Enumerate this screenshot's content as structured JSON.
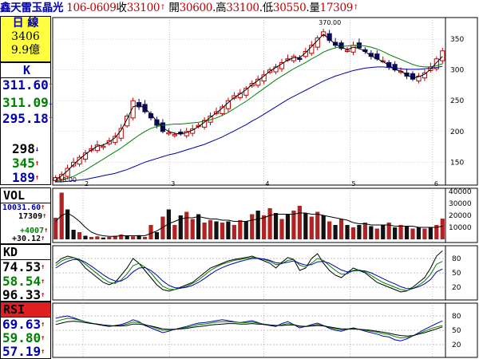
{
  "header": {
    "stock_name": "鑫天雷玉晶光",
    "code_date": "106-0609",
    "close_label": "收",
    "close": "33100",
    "open_label": "開",
    "open": "30600",
    "high_label": "高",
    "high": "33100",
    "low_label": "低",
    "low": "30550",
    "volume_label": "量",
    "volume": "17309"
  },
  "summary": {
    "period": "日 線",
    "count": "3406",
    "amount": "9.9億"
  },
  "panels": {
    "k": {
      "label": "K",
      "values": [
        "311.60",
        "311.09",
        "295.18",
        "298",
        "345",
        "189"
      ]
    },
    "vol": {
      "label": "VOL",
      "values": [
        "10031.60",
        "17309",
        "+4007",
        "+30.12"
      ]
    },
    "kd": {
      "label": "KD",
      "values": [
        "74.53",
        "58.54",
        "96.33"
      ]
    },
    "rsi": {
      "label": "RSI",
      "values": [
        "69.63",
        "59.80",
        "57.19"
      ]
    }
  },
  "colors": {
    "up": "#c00000",
    "down": "#0b0b5e",
    "ma_short": "#000000",
    "ma_mid": "#008000",
    "ma_long": "#0000aa",
    "bg": "#ffffff",
    "title_bg": "#ffff40"
  },
  "chart_data": [
    {
      "type": "candlestick",
      "ylim": [
        118,
        380
      ],
      "y_ticks": [
        150,
        200,
        250,
        300,
        350
      ],
      "month_labels": [
        "2",
        "3",
        "4",
        "5",
        "6"
      ],
      "month_label_positions": [
        0,
        0.22,
        0.46,
        0.68,
        0.89
      ],
      "annotations": [
        {
          "text": "370.00",
          "at": "high"
        },
        {
          "text": "118.00",
          "at": "low"
        }
      ],
      "close": [
        125,
        130,
        140,
        150,
        158,
        165,
        172,
        178,
        176,
        185,
        192,
        205,
        225,
        250,
        240,
        232,
        222,
        210,
        200,
        198,
        195,
        196,
        200,
        204,
        210,
        218,
        225,
        232,
        240,
        250,
        258,
        262,
        270,
        278,
        285,
        292,
        300,
        305,
        312,
        318,
        322,
        318,
        330,
        340,
        352,
        362,
        348,
        340,
        335,
        332,
        340,
        336,
        330,
        322,
        318,
        315,
        305,
        300,
        298,
        290,
        285,
        290,
        295,
        305,
        318,
        331
      ],
      "ma_short": [
        121,
        128,
        136,
        146,
        155,
        163,
        170,
        176,
        178,
        183,
        190,
        202,
        220,
        240,
        243,
        238,
        228,
        217,
        206,
        200,
        197,
        196,
        198,
        202,
        208,
        215,
        223,
        230,
        238,
        247,
        255,
        261,
        268,
        276,
        283,
        290,
        298,
        304,
        310,
        316,
        320,
        320,
        328,
        338,
        348,
        358,
        350,
        342,
        337,
        333,
        337,
        335,
        330,
        323,
        318,
        314,
        307,
        301,
        298,
        292,
        287,
        289,
        293,
        301,
        312,
        322
      ],
      "ma_mid": [
        119,
        121,
        124,
        127,
        132,
        137,
        143,
        149,
        155,
        161,
        167,
        173,
        180,
        187,
        194,
        200,
        205,
        208,
        210,
        211,
        212,
        212,
        213,
        214,
        215,
        217,
        219,
        222,
        226,
        231,
        237,
        243,
        249,
        256,
        263,
        270,
        277,
        284,
        290,
        296,
        302,
        307,
        312,
        318,
        323,
        329,
        333,
        336,
        338,
        339,
        340,
        340,
        339,
        337,
        334,
        330,
        325,
        321,
        317,
        313,
        309,
        306,
        305,
        305,
        307,
        310
      ],
      "ma_long": [
        118,
        118,
        119,
        120,
        121,
        122,
        124,
        126,
        128,
        130,
        132,
        135,
        138,
        142,
        146,
        150,
        153,
        156,
        159,
        162,
        164,
        167,
        170,
        173,
        176,
        179,
        183,
        187,
        191,
        196,
        201,
        206,
        211,
        217,
        222,
        228,
        234,
        240,
        246,
        252,
        257,
        262,
        267,
        272,
        277,
        282,
        286,
        290,
        293,
        296,
        299,
        301,
        303,
        304,
        305,
        305,
        304,
        303,
        302,
        301,
        301,
        301,
        302,
        303,
        304,
        306
      ]
    },
    {
      "type": "bar",
      "ylim": [
        0,
        40000
      ],
      "y_ticks": [
        10000,
        20000,
        30000,
        40000
      ],
      "values": [
        18000,
        39000,
        25000,
        8000,
        6000,
        3000,
        2000,
        2500,
        1500,
        2000,
        3000,
        4000,
        3000,
        2500,
        3500,
        2000,
        12000,
        6000,
        19000,
        25000,
        12000,
        20000,
        23000,
        17000,
        21000,
        14000,
        16000,
        15000,
        14000,
        15000,
        12000,
        16000,
        15000,
        21000,
        24000,
        20000,
        26000,
        22000,
        17000,
        21000,
        24000,
        28000,
        22000,
        19000,
        23000,
        20000,
        15000,
        12000,
        17000,
        12000,
        10000,
        12000,
        14000,
        11000,
        9000,
        12000,
        14000,
        10000,
        12000,
        11000,
        9000,
        10000,
        9000,
        10000,
        12000,
        17309
      ],
      "up_flags": [
        true,
        true,
        false,
        false,
        true,
        false,
        true,
        true,
        false,
        true,
        true,
        true,
        false,
        true,
        false,
        true,
        true,
        false,
        true,
        false,
        true,
        false,
        true,
        true,
        false,
        true,
        true,
        false,
        true,
        false,
        true,
        true,
        false,
        true,
        false,
        true,
        true,
        false,
        true,
        false,
        true,
        true,
        false,
        true,
        true,
        false,
        true,
        false,
        true,
        false,
        true,
        false,
        true,
        false,
        true,
        false,
        true,
        false,
        true,
        false,
        true,
        false,
        true,
        false,
        true,
        true
      ],
      "ma": [
        15000,
        20000,
        22000,
        19000,
        15000,
        10000,
        6000,
        4000,
        3000,
        2500,
        2500,
        3000,
        3000,
        3000,
        3000,
        3000,
        5000,
        7000,
        10000,
        13000,
        15000,
        17000,
        18000,
        18000,
        19000,
        18000,
        17000,
        17000,
        16000,
        16000,
        15000,
        15000,
        15000,
        16000,
        17000,
        18000,
        20000,
        21000,
        21000,
        21000,
        21000,
        22000,
        22000,
        21000,
        21000,
        20000,
        19000,
        18000,
        17000,
        16000,
        14000,
        13000,
        13000,
        12000,
        12000,
        12000,
        12000,
        11000,
        11000,
        11000,
        11000,
        10000,
        10000,
        10000,
        10000,
        11000
      ]
    },
    {
      "type": "line",
      "ylim": [
        0,
        100
      ],
      "y_ticks": [
        20,
        50,
        80
      ],
      "series": [
        {
          "values": [
            70,
            80,
            85,
            82,
            75,
            60,
            50,
            40,
            30,
            25,
            30,
            45,
            60,
            80,
            70,
            55,
            40,
            25,
            15,
            12,
            15,
            20,
            25,
            30,
            40,
            50,
            60,
            65,
            70,
            75,
            78,
            80,
            82,
            85,
            80,
            75,
            70,
            60,
            72,
            82,
            78,
            55,
            60,
            80,
            90,
            70,
            55,
            45,
            40,
            50,
            60,
            55,
            50,
            40,
            30,
            25,
            20,
            15,
            10,
            12,
            20,
            30,
            40,
            60,
            85,
            96
          ]
        },
        {
          "values": [
            65,
            75,
            80,
            82,
            78,
            68,
            58,
            48,
            38,
            30,
            28,
            35,
            48,
            65,
            70,
            62,
            50,
            35,
            22,
            16,
            15,
            18,
            22,
            28,
            35,
            45,
            55,
            62,
            68,
            72,
            76,
            78,
            80,
            82,
            81,
            78,
            74,
            67,
            69,
            76,
            78,
            66,
            62,
            70,
            80,
            76,
            65,
            55,
            47,
            48,
            55,
            56,
            52,
            45,
            37,
            30,
            25,
            20,
            15,
            13,
            17,
            24,
            33,
            47,
            68,
            74
          ]
        },
        {
          "values": [
            60,
            68,
            74,
            78,
            78,
            72,
            64,
            55,
            46,
            38,
            33,
            33,
            40,
            52,
            60,
            61,
            55,
            45,
            33,
            24,
            19,
            18,
            20,
            24,
            30,
            38,
            47,
            55,
            61,
            66,
            70,
            74,
            77,
            80,
            80,
            79,
            76,
            71,
            70,
            72,
            75,
            70,
            66,
            67,
            73,
            74,
            70,
            63,
            56,
            52,
            54,
            55,
            54,
            50,
            44,
            38,
            32,
            27,
            21,
            17,
            17,
            21,
            27,
            36,
            52,
            58
          ]
        }
      ]
    },
    {
      "type": "line",
      "ylim": [
        0,
        100
      ],
      "y_ticks": [
        20,
        50,
        80
      ],
      "series": [
        {
          "values": [
            75,
            78,
            80,
            76,
            72,
            68,
            65,
            62,
            60,
            58,
            60,
            62,
            66,
            72,
            68,
            60,
            55,
            50,
            45,
            48,
            52,
            55,
            58,
            62,
            65,
            66,
            68,
            70,
            72,
            70,
            68,
            66,
            68,
            70,
            66,
            62,
            60,
            58,
            64,
            68,
            62,
            55,
            58,
            62,
            65,
            60,
            54,
            50,
            48,
            52,
            55,
            52,
            48,
            45,
            42,
            38,
            36,
            30,
            28,
            32,
            38,
            45,
            52,
            58,
            64,
            69.63
          ]
        },
        {
          "values": [
            68,
            72,
            75,
            74,
            71,
            68,
            65,
            63,
            61,
            59,
            59,
            60,
            63,
            67,
            66,
            62,
            58,
            54,
            50,
            50,
            52,
            54,
            56,
            59,
            62,
            63,
            65,
            67,
            68,
            68,
            67,
            66,
            66,
            67,
            65,
            63,
            61,
            60,
            61,
            64,
            62,
            58,
            58,
            60,
            62,
            60,
            56,
            53,
            51,
            52,
            53,
            52,
            50,
            48,
            46,
            43,
            41,
            37,
            34,
            35,
            38,
            43,
            48,
            53,
            57,
            59.8
          ]
        },
        {
          "values": [
            62,
            65,
            68,
            69,
            68,
            66,
            64,
            63,
            61,
            60,
            59,
            59,
            60,
            63,
            63,
            61,
            59,
            56,
            53,
            52,
            52,
            53,
            54,
            56,
            58,
            59,
            61,
            62,
            63,
            64,
            64,
            63,
            63,
            64,
            63,
            62,
            61,
            60,
            60,
            61,
            61,
            59,
            58,
            59,
            60,
            59,
            57,
            55,
            53,
            53,
            53,
            52,
            51,
            50,
            48,
            46,
            44,
            41,
            39,
            38,
            39,
            42,
            45,
            49,
            53,
            57.19
          ]
        }
      ]
    }
  ]
}
